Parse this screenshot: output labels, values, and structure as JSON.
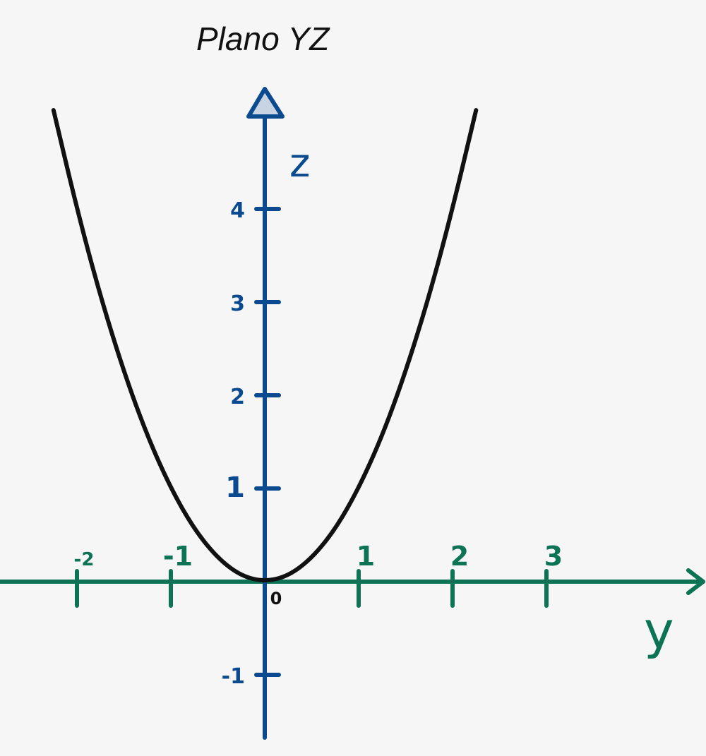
{
  "chart_data": {
    "type": "line",
    "title": "Plano YZ",
    "xlabel": "y",
    "ylabel": "z",
    "origin_label": "0",
    "x_ticks": [
      -2,
      -1,
      1,
      2,
      3
    ],
    "x_tick_labels": [
      "-2",
      "-1",
      "1",
      "2",
      "3"
    ],
    "y_ticks": [
      -1,
      1,
      2,
      3,
      4
    ],
    "y_tick_labels": [
      "-1",
      "1",
      "2",
      "3",
      "4"
    ],
    "xlim": [
      -2.85,
      4.6
    ],
    "ylim": [
      -1.65,
      5.3
    ],
    "grid": false,
    "series": [
      {
        "color": "#111111",
        "x": [
          -2.25,
          -2.0,
          -1.75,
          -1.5,
          -1.25,
          -1.0,
          -0.75,
          -0.5,
          -0.25,
          0.0,
          0.25,
          0.5,
          0.75,
          1.0,
          1.25,
          1.5,
          1.75,
          2.0,
          2.25
        ],
        "y": [
          5.06,
          4.0,
          3.06,
          2.25,
          1.56,
          1.0,
          0.56,
          0.25,
          0.06,
          0.0,
          0.06,
          0.25,
          0.56,
          1.0,
          1.56,
          2.25,
          3.06,
          4.0,
          5.06
        ]
      }
    ],
    "colors": {
      "y_axis": "#0c4a8f",
      "x_axis": "#0c7355",
      "curve": "#111111",
      "background": "#f6f6f6",
      "arrow_fill": "#c9d4e3"
    }
  }
}
